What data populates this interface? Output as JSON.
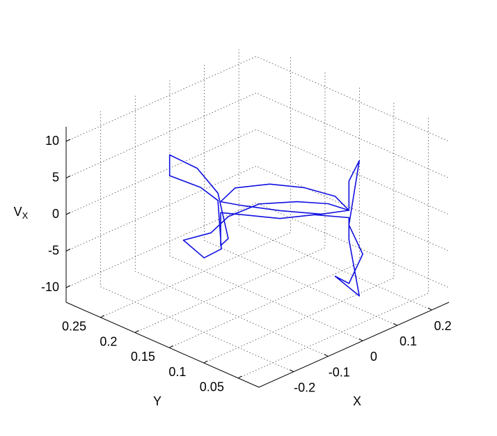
{
  "chart_data": {
    "type": "line3d",
    "xlabel": "X",
    "ylabel": "Y",
    "zlabel": "V",
    "zlabel_subscript": "X",
    "xlim": [
      -0.3,
      0.25
    ],
    "ylim": [
      0.02,
      0.3
    ],
    "zlim": [
      -12,
      12
    ],
    "xticks": [
      -0.2,
      -0.1,
      0,
      0.1,
      0.2
    ],
    "yticks": [
      0.05,
      0.1,
      0.15,
      0.2,
      0.25
    ],
    "zticks": [
      -10,
      -5,
      0,
      5,
      10
    ],
    "grid": true,
    "color": "#1010e0",
    "x": [
      -0.06,
      -0.03,
      0.02,
      0.07,
      0.11,
      0.12,
      0.12,
      0.13,
      0.12,
      0.14,
      0.12,
      0.1,
      0.13,
      0.12,
      0.12,
      0.08,
      0.03,
      -0.02,
      -0.06,
      -0.06,
      -0.05,
      -0.06,
      -0.08,
      -0.1,
      -0.12,
      -0.09,
      -0.06,
      -0.07,
      -0.1,
      -0.12,
      -0.08,
      -0.05,
      0.0,
      0.05,
      0.1,
      0.12,
      0.08,
      0.02,
      -0.03,
      -0.06
    ],
    "y": [
      0.196,
      0.19,
      0.165,
      0.14,
      0.115,
      0.1,
      0.1,
      0.09,
      0.1,
      0.09,
      0.1,
      0.11,
      0.09,
      0.1,
      0.1,
      0.13,
      0.155,
      0.18,
      0.196,
      0.196,
      0.19,
      0.2,
      0.22,
      0.25,
      0.24,
      0.21,
      0.2,
      0.19,
      0.2,
      0.22,
      0.2,
      0.19,
      0.17,
      0.14,
      0.12,
      0.1,
      0.12,
      0.15,
      0.18,
      0.196
    ],
    "z": [
      1,
      2.5,
      3,
      2.5,
      1.5,
      0,
      4,
      7,
      -2,
      -6,
      -10,
      -9,
      -11.5,
      -4,
      -1,
      -1,
      -1.5,
      -1,
      -0.5,
      -5,
      -4,
      2,
      5,
      6,
      4,
      3,
      1,
      -5,
      -6,
      -4,
      -3,
      -1,
      0.5,
      1,
      0.5,
      0,
      -0.5,
      0,
      0.5,
      1
    ]
  }
}
